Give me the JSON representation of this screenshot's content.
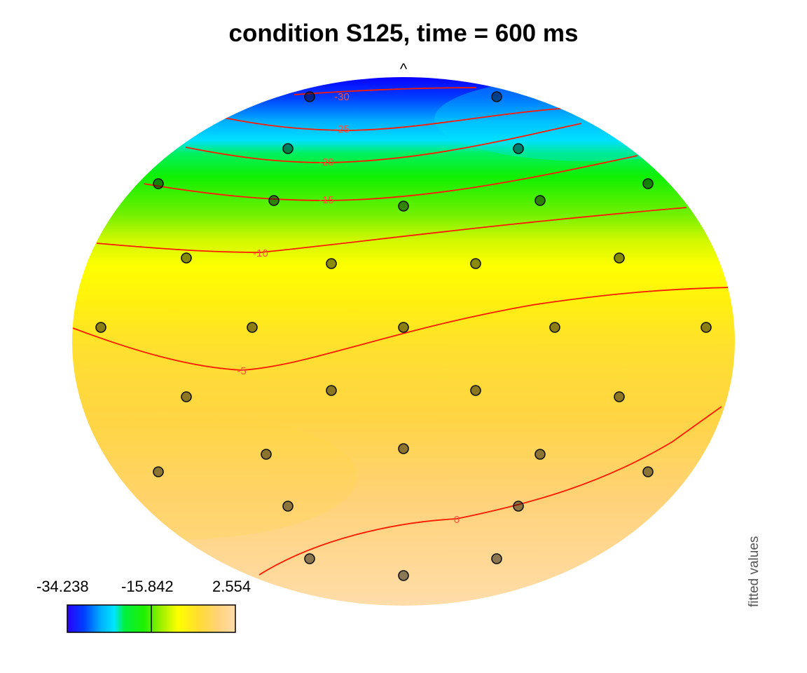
{
  "title": "condition S125, time = 600 ms",
  "nose_marker": "^",
  "side_label": "fitted values",
  "colorbar": {
    "min_label": "-34.238",
    "mid_label": "-15.842",
    "max_label": "2.554",
    "min": -34.238,
    "max": 2.554,
    "marker_value": -15.842,
    "colors": [
      "#1f00ff",
      "#0048ff",
      "#00b4ff",
      "#00e5ff",
      "#00f040",
      "#10f000",
      "#80f000",
      "#e8ff00",
      "#ffff00",
      "#ffe020",
      "#ffd030",
      "#ffd070",
      "#ffdca0"
    ]
  },
  "chart_data": {
    "type": "heatmap",
    "title": "condition S125, time = 600 ms",
    "value_range": [
      -34.238,
      2.554
    ],
    "contour_levels": [
      -30,
      -25,
      -20,
      -15,
      -10,
      -5,
      0
    ],
    "contour_labels": [
      "-30",
      "-25",
      "-20",
      "-15",
      "-10",
      "-5",
      "0"
    ],
    "grid_rows": 9,
    "grid_cols": 7
  }
}
